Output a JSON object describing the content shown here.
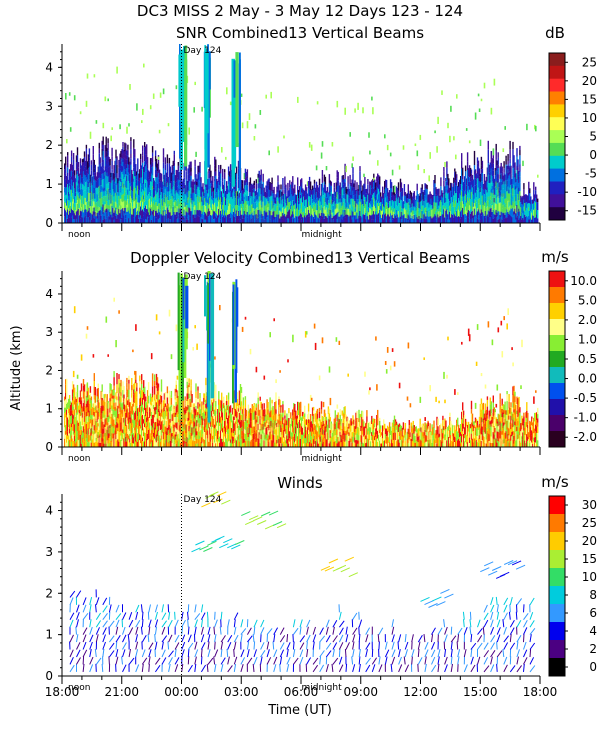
{
  "header": {
    "title": "DC3 MISS   2 May -  3 May 12 Days 123 - 124"
  },
  "y_axis_label": "Altitude (km)",
  "x_axis_label": "Time (UT)",
  "time_ticks": [
    "18:00",
    "21:00",
    "00:00",
    "03:00",
    "06:00",
    "09:00",
    "12:00",
    "15:00",
    "18:00"
  ],
  "markers": {
    "noon": "noon",
    "midnight": "midnight",
    "day": "Day 124"
  },
  "colors": {
    "snr": [
      "#8a1d1d",
      "#c01515",
      "#ff2a2a",
      "#ff8000",
      "#ffd000",
      "#ffff55",
      "#aaff55",
      "#55dd55",
      "#00cccc",
      "#0070e0",
      "#2020c0",
      "#40109a",
      "#200040"
    ],
    "vel": [
      "#ee1111",
      "#ff7a00",
      "#ffd000",
      "#ffff88",
      "#88ee33",
      "#22aa22",
      "#11bbbb",
      "#0050ee",
      "#2010aa",
      "#4a006a",
      "#2a0020"
    ],
    "wind": [
      "#000000",
      "#4b0082",
      "#0000ee",
      "#3399ff",
      "#00ccdd",
      "#33dd66",
      "#aaee33",
      "#ffcc00",
      "#ff7a00",
      "#ff0000"
    ]
  },
  "chart_data": [
    {
      "type": "heatmap",
      "title": "SNR Combined13 Vertical Beams",
      "unit": "dB",
      "colorbar_ticks": [
        "25",
        "20",
        "15",
        "10",
        "5",
        "0",
        "-5",
        "-10",
        "-15"
      ],
      "colorbar_range": [
        -15,
        30
      ],
      "ylim": [
        0,
        4.6
      ],
      "y_ticks": [
        "0",
        "1",
        "2",
        "3",
        "4"
      ],
      "xlabel": "Time (UT)",
      "ylabel": "Altitude (km)",
      "x_range_hours": [
        18,
        42
      ],
      "profile_km": [
        1.6,
        1.7,
        1.8,
        1.8,
        1.7,
        1.6,
        1.4,
        1.3,
        1.2,
        1.1,
        1.0,
        1.0,
        1.0,
        1.1,
        1.2,
        1.0,
        0.9,
        0.8,
        0.9,
        1.2,
        1.5,
        1.6,
        1.7,
        0.8
      ]
    },
    {
      "type": "heatmap",
      "title": "Doppler Velocity Combined13 Vertical Beams",
      "unit": "m/s",
      "colorbar_ticks": [
        "10.0",
        "5.0",
        "2.0",
        "1.0",
        "0.5",
        "0.0",
        "-0.5",
        "-1.0",
        "-2.0"
      ],
      "colorbar_range": [
        -2.0,
        10.0
      ],
      "ylim": [
        0,
        4.6
      ],
      "y_ticks": [
        "0",
        "1",
        "2",
        "3",
        "4"
      ],
      "xlabel": "Time (UT)",
      "ylabel": "Altitude (km)",
      "x_range_hours": [
        18,
        42
      ],
      "profile_km": [
        1.5,
        1.5,
        1.6,
        1.6,
        1.6,
        1.5,
        1.5,
        1.4,
        1.3,
        1.2,
        1.1,
        1.0,
        0.9,
        0.8,
        0.8,
        0.7,
        0.6,
        0.5,
        0.5,
        0.6,
        0.9,
        1.1,
        1.3,
        0.8
      ]
    },
    {
      "type": "scatter",
      "title": "Winds",
      "unit": "m/s",
      "colorbar_ticks": [
        "30",
        "25",
        "20",
        "15",
        "10",
        "8",
        "6",
        "4",
        "2",
        "0"
      ],
      "colorbar_range": [
        0,
        30
      ],
      "ylim": [
        0,
        4.4
      ],
      "y_ticks": [
        "0",
        "1",
        "2",
        "3",
        "4"
      ],
      "xlabel": "Time (UT)",
      "ylabel": "Altitude (km)",
      "x_range_hours": [
        18,
        42
      ],
      "profile_km": [
        1.7,
        1.7,
        1.6,
        1.5,
        1.5,
        1.4,
        1.3,
        1.2,
        1.1,
        1.0,
        0.9,
        0.9,
        1.0,
        1.2,
        1.1,
        0.9,
        0.8,
        0.8,
        0.9,
        1.1,
        1.3,
        1.5,
        1.6,
        1.5
      ]
    }
  ]
}
